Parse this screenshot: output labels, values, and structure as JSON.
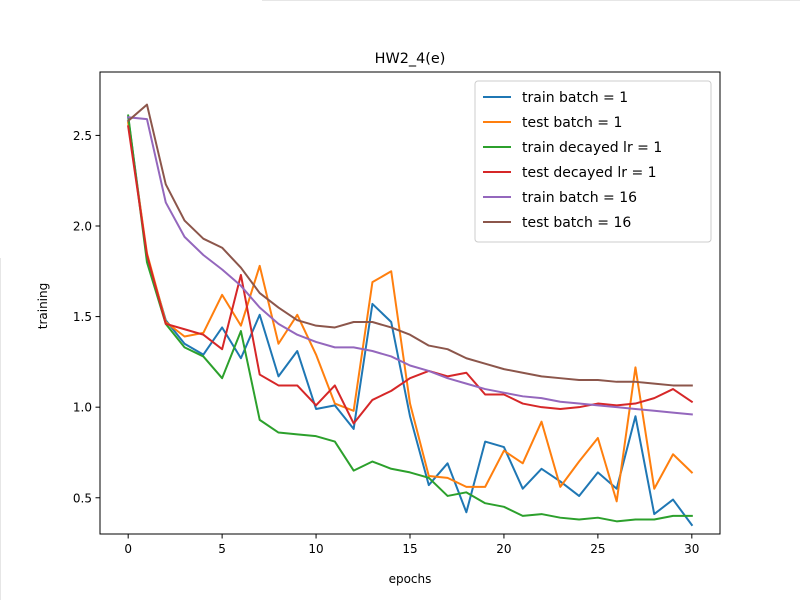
{
  "chart_data": {
    "type": "line",
    "title": "HW2_4(e)",
    "xlabel": "epochs",
    "ylabel": "training",
    "xlim": [
      -1.5,
      31.5
    ],
    "ylim": [
      0.3,
      2.85
    ],
    "xticks": [
      0,
      5,
      10,
      15,
      20,
      25,
      30
    ],
    "xtick_labels": [
      "0",
      "5",
      "10",
      "15",
      "20",
      "25",
      "30"
    ],
    "yticks": [
      0.5,
      1.0,
      1.5,
      2.0,
      2.5
    ],
    "ytick_labels": [
      "0.5",
      "1.0",
      "1.5",
      "2.0",
      "2.5"
    ],
    "grid": false,
    "legend_position": "top-right",
    "x": [
      0,
      1,
      2,
      3,
      4,
      5,
      6,
      7,
      8,
      9,
      10,
      11,
      12,
      13,
      14,
      15,
      16,
      17,
      18,
      19,
      20,
      21,
      22,
      23,
      24,
      25,
      26,
      27,
      28,
      29,
      30
    ],
    "series": [
      {
        "name": "train batch = 1",
        "color": "#1f77b4",
        "values": [
          2.6,
          1.83,
          1.48,
          1.35,
          1.29,
          1.44,
          1.27,
          1.51,
          1.17,
          1.31,
          0.99,
          1.01,
          0.88,
          1.57,
          1.47,
          0.95,
          0.57,
          0.69,
          0.42,
          0.81,
          0.78,
          0.55,
          0.66,
          0.59,
          0.51,
          0.64,
          0.55,
          0.95,
          0.41,
          0.49,
          0.35
        ]
      },
      {
        "name": "test batch = 1",
        "color": "#ff7f0e",
        "values": [
          2.57,
          1.85,
          1.47,
          1.39,
          1.41,
          1.62,
          1.45,
          1.78,
          1.35,
          1.51,
          1.29,
          1.02,
          0.98,
          1.69,
          1.75,
          1.02,
          0.62,
          0.61,
          0.56,
          0.56,
          0.76,
          0.69,
          0.92,
          0.56,
          0.7,
          0.83,
          0.48,
          1.22,
          0.55,
          0.74,
          0.64
        ]
      },
      {
        "name": "train decayed lr = 1",
        "color": "#2ca02c",
        "values": [
          2.61,
          1.8,
          1.46,
          1.33,
          1.28,
          1.16,
          1.42,
          0.93,
          0.86,
          0.85,
          0.84,
          0.81,
          0.65,
          0.7,
          0.66,
          0.64,
          0.61,
          0.51,
          0.53,
          0.47,
          0.45,
          0.4,
          0.41,
          0.39,
          0.38,
          0.39,
          0.37,
          0.38,
          0.38,
          0.4,
          0.4
        ]
      },
      {
        "name": "test decayed lr = 1",
        "color": "#d62728",
        "values": [
          2.55,
          1.84,
          1.46,
          1.43,
          1.4,
          1.32,
          1.73,
          1.18,
          1.12,
          1.12,
          1.01,
          1.12,
          0.91,
          1.04,
          1.09,
          1.16,
          1.2,
          1.17,
          1.19,
          1.07,
          1.07,
          1.02,
          1.0,
          0.99,
          1.0,
          1.02,
          1.01,
          1.02,
          1.05,
          1.1,
          1.03
        ]
      },
      {
        "name": "train batch = 16",
        "color": "#9467bd",
        "values": [
          2.6,
          2.59,
          2.13,
          1.94,
          1.84,
          1.76,
          1.67,
          1.55,
          1.46,
          1.4,
          1.36,
          1.33,
          1.33,
          1.31,
          1.28,
          1.23,
          1.2,
          1.16,
          1.13,
          1.1,
          1.08,
          1.06,
          1.05,
          1.03,
          1.02,
          1.01,
          1.0,
          0.99,
          0.98,
          0.97,
          0.96
        ]
      },
      {
        "name": "test batch = 16",
        "color": "#8c564b",
        "values": [
          2.58,
          2.67,
          2.23,
          2.03,
          1.93,
          1.88,
          1.77,
          1.63,
          1.55,
          1.48,
          1.45,
          1.44,
          1.47,
          1.47,
          1.44,
          1.4,
          1.34,
          1.32,
          1.27,
          1.24,
          1.21,
          1.19,
          1.17,
          1.16,
          1.15,
          1.15,
          1.14,
          1.14,
          1.13,
          1.12,
          1.12
        ]
      }
    ]
  }
}
